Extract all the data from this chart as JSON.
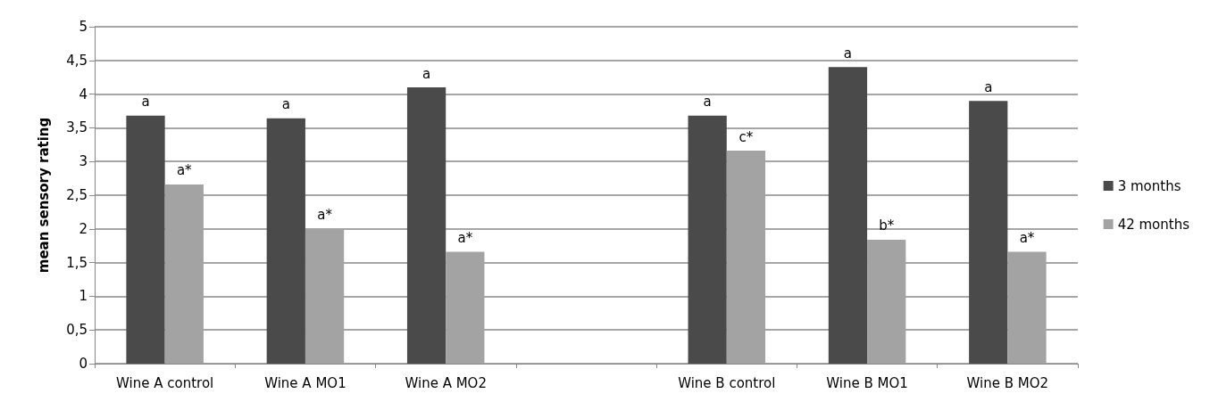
{
  "chart_data": {
    "type": "bar",
    "ylabel": "mean sensory rating",
    "categories": [
      "Wine A control",
      "Wine A MO1",
      "Wine A MO2",
      null,
      "Wine B control",
      "Wine B MO1",
      "Wine B MO2"
    ],
    "series": [
      {
        "name": "3 months",
        "color": "#4a4a4a",
        "values": [
          3.68,
          3.64,
          4.1,
          null,
          3.68,
          4.4,
          3.9
        ],
        "value_labels": [
          "a",
          "a",
          "a",
          null,
          "a",
          "a",
          "a"
        ]
      },
      {
        "name": "42 months",
        "color": "#a3a3a3",
        "values": [
          2.66,
          2.0,
          1.66,
          null,
          3.16,
          1.84,
          1.66
        ],
        "value_labels": [
          "a*",
          "a*",
          "a*",
          null,
          "c*",
          "b*",
          "a*"
        ]
      }
    ],
    "ylim": [
      0,
      5
    ],
    "yticks": [
      0,
      {
        "value": 0.5,
        "label": "0,5"
      },
      1,
      {
        "value": 1.5,
        "label": "1,5"
      },
      2,
      {
        "value": 2.5,
        "label": "2,5"
      },
      3,
      {
        "value": 3.5,
        "label": "3,5"
      },
      4,
      {
        "value": 4.5,
        "label": "4,5"
      },
      5
    ],
    "grid": "y",
    "legend": "right"
  }
}
